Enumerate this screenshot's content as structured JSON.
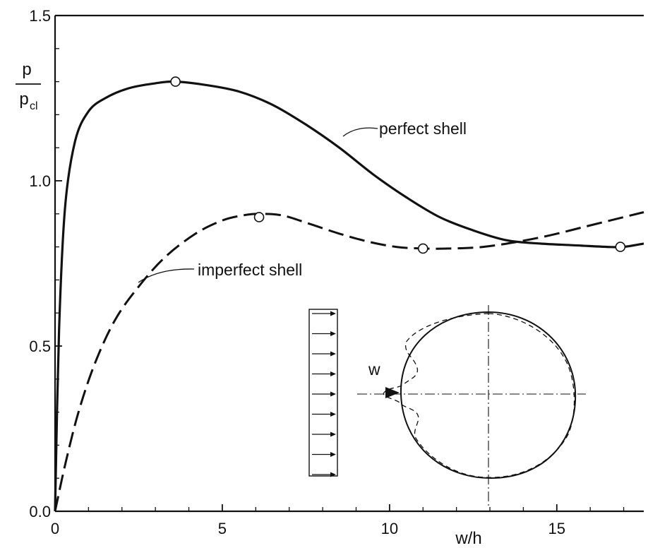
{
  "chart_data": {
    "type": "line",
    "title": "",
    "xlabel": "w/h",
    "ylabel": {
      "main": "p",
      "sub_base": "p",
      "sub_index": "cl"
    },
    "xlim": [
      0,
      17.6
    ],
    "ylim": [
      0,
      1.5
    ],
    "x_ticks": [
      {
        "value": 0,
        "label": "0"
      },
      {
        "value": 5,
        "label": "5"
      },
      {
        "value": 10,
        "label": "10"
      },
      {
        "value": 15,
        "label": "15"
      }
    ],
    "y_ticks": [
      {
        "value": 0.0,
        "label": "0.0"
      },
      {
        "value": 0.5,
        "label": "0.5"
      },
      {
        "value": 1.0,
        "label": "1.0"
      },
      {
        "value": 1.5,
        "label": "1.5"
      }
    ],
    "grid": false,
    "series": [
      {
        "name": "perfect shell",
        "style": "solid",
        "x": [
          0,
          0.12,
          0.3,
          0.6,
          1.0,
          1.5,
          2.2,
          3.0,
          3.6,
          4.5,
          5.5,
          6.5,
          7.5,
          8.5,
          9.5,
          10.5,
          11.5,
          12.5,
          13.5,
          14.5,
          15.5,
          16.5,
          17.0,
          17.6
        ],
        "y": [
          0,
          0.55,
          0.92,
          1.12,
          1.21,
          1.25,
          1.28,
          1.295,
          1.3,
          1.29,
          1.27,
          1.23,
          1.17,
          1.1,
          1.02,
          0.95,
          0.89,
          0.85,
          0.82,
          0.81,
          0.805,
          0.8,
          0.8,
          0.81
        ]
      },
      {
        "name": "imperfect shell",
        "style": "dashed",
        "x": [
          0,
          0.3,
          0.7,
          1.2,
          1.8,
          2.5,
          3.3,
          4.2,
          5.0,
          5.6,
          6.1,
          6.8,
          7.6,
          8.5,
          9.4,
          10.2,
          11.0,
          11.8,
          12.8,
          13.8,
          14.8,
          15.8,
          16.8,
          17.6
        ],
        "y": [
          0,
          0.14,
          0.3,
          0.45,
          0.58,
          0.68,
          0.77,
          0.84,
          0.88,
          0.895,
          0.9,
          0.895,
          0.87,
          0.84,
          0.815,
          0.8,
          0.795,
          0.795,
          0.8,
          0.815,
          0.835,
          0.86,
          0.885,
          0.905
        ]
      }
    ],
    "markers": [
      {
        "x": 3.6,
        "y": 1.3
      },
      {
        "x": 6.1,
        "y": 0.89
      },
      {
        "x": 11.0,
        "y": 0.795
      },
      {
        "x": 16.9,
        "y": 0.8
      }
    ],
    "annotations": {
      "perfect": "perfect shell",
      "imperfect": "imperfect shell",
      "w": "w"
    }
  }
}
